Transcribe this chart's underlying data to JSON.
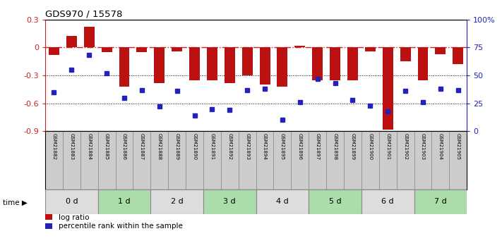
{
  "title": "GDS970 / 15578",
  "samples": [
    "GSM21882",
    "GSM21883",
    "GSM21884",
    "GSM21885",
    "GSM21886",
    "GSM21887",
    "GSM21888",
    "GSM21889",
    "GSM21890",
    "GSM21891",
    "GSM21892",
    "GSM21893",
    "GSM21894",
    "GSM21895",
    "GSM21896",
    "GSM21897",
    "GSM21898",
    "GSM21899",
    "GSM21900",
    "GSM21901",
    "GSM21902",
    "GSM21903",
    "GSM21904",
    "GSM21905"
  ],
  "log_ratio": [
    -0.08,
    0.12,
    0.22,
    -0.05,
    -0.42,
    -0.05,
    -0.38,
    -0.04,
    -0.35,
    -0.35,
    -0.38,
    -0.3,
    -0.4,
    -0.42,
    0.02,
    -0.35,
    -0.35,
    -0.35,
    -0.04,
    -0.88,
    -0.15,
    -0.35,
    -0.07,
    -0.18
  ],
  "percentile": [
    35,
    55,
    68,
    52,
    30,
    37,
    22,
    36,
    14,
    20,
    19,
    37,
    38,
    10,
    26,
    47,
    43,
    28,
    23,
    18,
    36,
    26,
    38,
    37
  ],
  "group_names": [
    "0 d",
    "1 d",
    "2 d",
    "3 d",
    "4 d",
    "5 d",
    "6 d",
    "7 d"
  ],
  "group_starts": [
    0,
    3,
    6,
    9,
    12,
    15,
    18,
    21
  ],
  "group_ends": [
    2,
    5,
    8,
    11,
    14,
    17,
    20,
    23
  ],
  "group_colors_time": [
    "#dddddd",
    "#aaddaa",
    "#dddddd",
    "#aaddaa",
    "#dddddd",
    "#aaddaa",
    "#dddddd",
    "#aaddaa"
  ],
  "sample_cell_color": "#cccccc",
  "sample_cell_border": "#888888",
  "bar_color": "#bb1111",
  "dot_color": "#2222bb",
  "hline0_color": "#cc2222",
  "ylim_left": [
    -0.9,
    0.3
  ],
  "ylim_right": [
    0,
    100
  ],
  "yticks_left": [
    0.3,
    0.0,
    -0.3,
    -0.6,
    -0.9
  ],
  "ytick_labels_left": [
    "0.3",
    "0",
    "-0.3",
    "-0.6",
    "-0.9"
  ],
  "yticks_right": [
    0,
    25,
    50,
    75,
    100
  ],
  "ytick_labels_right": [
    "0",
    "25",
    "50",
    "75",
    "100%"
  ]
}
